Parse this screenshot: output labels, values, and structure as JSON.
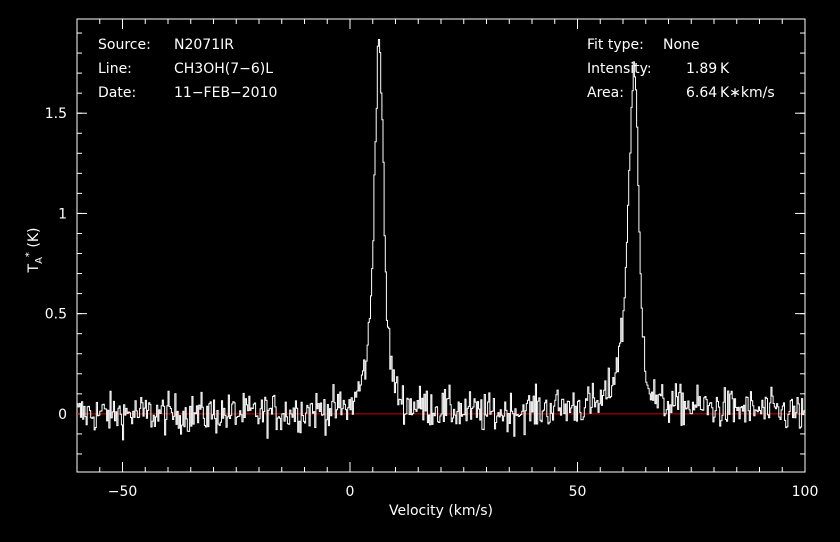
{
  "chart_data": {
    "type": "line",
    "xlabel": "Velocity (km/s)",
    "ylabel": "T*A (K)",
    "ylabel_main": "T",
    "ylabel_sub": "A",
    "ylabel_sup": "*",
    "ylabel_unit": " (K)",
    "xlim": [
      -60,
      100
    ],
    "ylim": [
      -0.29,
      1.97
    ],
    "grid": false,
    "x_ticks": [
      -50,
      0,
      50,
      100
    ],
    "x_tick_labels": [
      "−50",
      "0",
      "50",
      "100"
    ],
    "y_ticks": [
      0,
      0.5,
      1,
      1.5
    ],
    "y_tick_labels": [
      "0",
      "0.5",
      "1",
      "1.5"
    ],
    "x_minor_step": 5,
    "y_minor_step": 0.1,
    "baseline": {
      "value": 0,
      "color": "#cc0000"
    },
    "spectrum_color": "#ffffff",
    "series": [
      {
        "x": [
          -60,
          -20,
          0,
          2,
          3,
          4,
          4.5,
          5,
          5.5,
          6,
          6.5,
          7,
          7.5,
          8,
          9,
          10,
          12,
          30,
          55,
          57,
          58,
          59,
          60,
          60.5,
          61,
          61.5,
          62,
          62.5,
          63,
          63.5,
          64,
          65,
          66,
          68,
          100
        ],
        "y": [
          0,
          0,
          0.03,
          0.12,
          0.2,
          0.35,
          0.5,
          0.8,
          1.3,
          1.75,
          1.89,
          1.6,
          1.0,
          0.55,
          0.25,
          0.12,
          0.05,
          0,
          0.05,
          0.12,
          0.18,
          0.3,
          0.45,
          0.65,
          0.95,
          1.3,
          1.6,
          1.75,
          1.5,
          1.0,
          0.55,
          0.25,
          0.12,
          0.05,
          0
        ],
        "noise_rms": 0.05
      }
    ]
  },
  "info_left": [
    {
      "key": "Source:",
      "value": "N2071IR"
    },
    {
      "key": "Line:",
      "value": "CH3OH(7−6)L"
    },
    {
      "key": "Date:",
      "value": "11−FEB−2010"
    }
  ],
  "info_right": [
    {
      "key": "Fit type:",
      "value": "None"
    },
    {
      "key": "Intensity:",
      "value": "1.89 K"
    },
    {
      "key": "Area:",
      "value": "6.64 K∗km/s"
    }
  ]
}
